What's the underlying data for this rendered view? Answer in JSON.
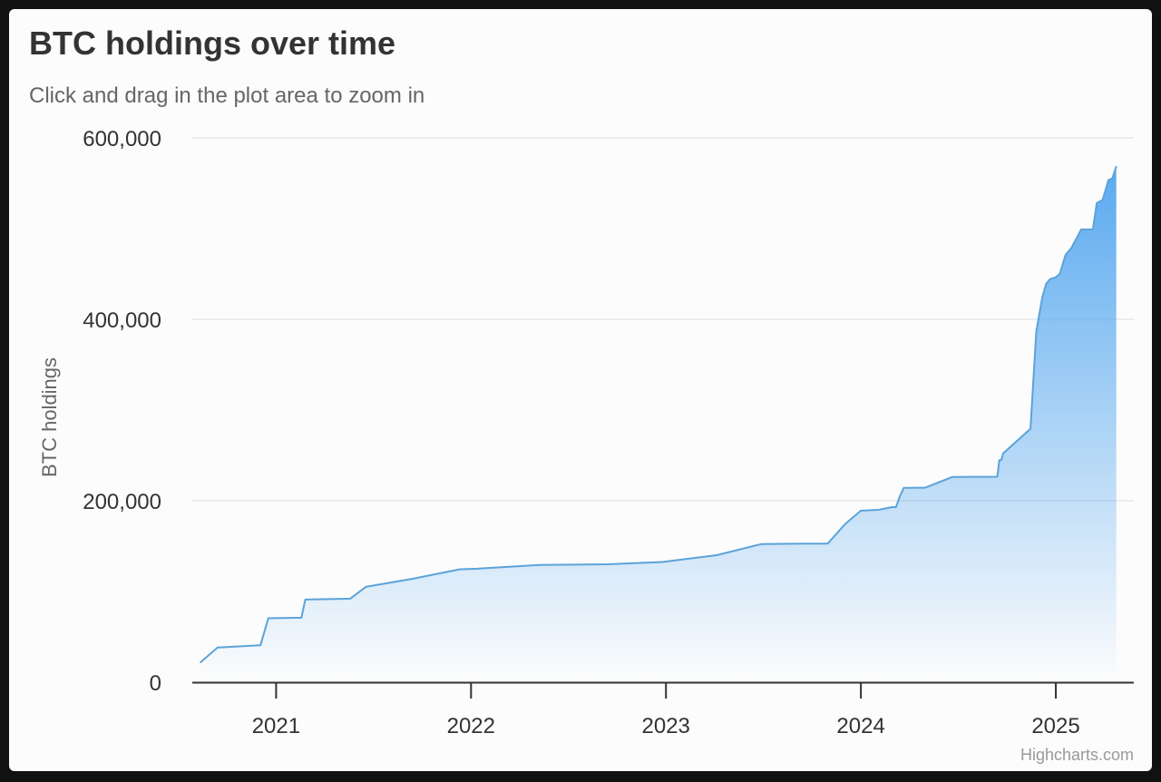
{
  "chart_data": {
    "type": "area",
    "title": "BTC holdings over time",
    "subtitle": "Click and drag in the plot area to zoom in",
    "xlabel": "",
    "ylabel": "BTC holdings",
    "credits": "Highcharts.com",
    "x_range": [
      2020.57,
      2025.4
    ],
    "ylim": [
      0,
      600000
    ],
    "y_ticks": [
      {
        "value": 0,
        "label": "0"
      },
      {
        "value": 200000,
        "label": "200,000"
      },
      {
        "value": 400000,
        "label": "400,000"
      },
      {
        "value": 600000,
        "label": "600,000"
      }
    ],
    "x_ticks": [
      {
        "value": 2021,
        "label": "2021"
      },
      {
        "value": 2022,
        "label": "2022"
      },
      {
        "value": 2023,
        "label": "2023"
      },
      {
        "value": 2024,
        "label": "2024"
      },
      {
        "value": 2025,
        "label": "2025"
      }
    ],
    "grid": true,
    "line_color": "#5ba3d9",
    "fill_top_color": "#5aaaf0",
    "series": [
      {
        "name": "BTC holdings",
        "points": [
          [
            2020.61,
            21454
          ],
          [
            2020.7,
            38250
          ],
          [
            2020.92,
            40824
          ],
          [
            2020.96,
            70470
          ],
          [
            2021.13,
            71079
          ],
          [
            2021.15,
            91064
          ],
          [
            2021.38,
            92079
          ],
          [
            2021.46,
            105085
          ],
          [
            2021.7,
            114042
          ],
          [
            2021.94,
            124391
          ],
          [
            2022.03,
            125051
          ],
          [
            2022.35,
            129218
          ],
          [
            2022.7,
            130000
          ],
          [
            2022.98,
            132500
          ],
          [
            2023.26,
            140000
          ],
          [
            2023.49,
            152333
          ],
          [
            2023.7,
            152800
          ],
          [
            2023.83,
            152800
          ],
          [
            2023.92,
            174530
          ],
          [
            2024.0,
            189150
          ],
          [
            2024.09,
            190000
          ],
          [
            2024.16,
            193000
          ],
          [
            2024.18,
            193000
          ],
          [
            2024.2,
            205000
          ],
          [
            2024.22,
            214246
          ],
          [
            2024.33,
            214400
          ],
          [
            2024.47,
            226331
          ],
          [
            2024.7,
            226500
          ],
          [
            2024.71,
            244800
          ],
          [
            2024.72,
            244800
          ],
          [
            2024.73,
            252220
          ],
          [
            2024.87,
            279420
          ],
          [
            2024.9,
            386700
          ],
          [
            2024.93,
            423650
          ],
          [
            2024.95,
            439000
          ],
          [
            2024.97,
            444262
          ],
          [
            2025.0,
            446400
          ],
          [
            2025.02,
            450000
          ],
          [
            2025.05,
            471107
          ],
          [
            2025.08,
            478740
          ],
          [
            2025.13,
            499096
          ],
          [
            2025.19,
            499226
          ],
          [
            2025.21,
            528185
          ],
          [
            2025.24,
            531644
          ],
          [
            2025.27,
            553555
          ],
          [
            2025.29,
            555450
          ],
          [
            2025.31,
            568840
          ]
        ]
      }
    ]
  }
}
